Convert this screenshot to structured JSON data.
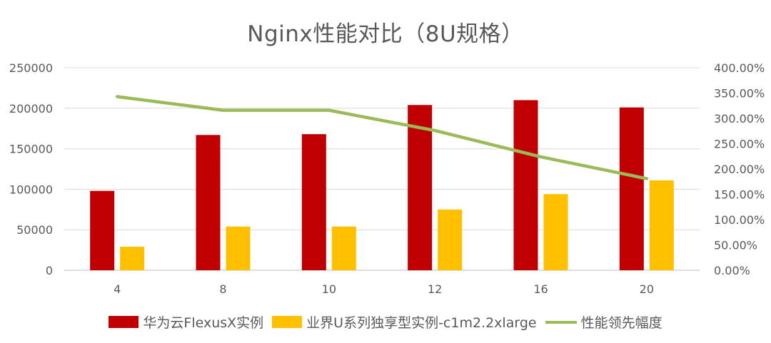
{
  "chart_data": {
    "type": "bar",
    "title": "Nginx性能对比（8U规格）",
    "categories": [
      "4",
      "8",
      "10",
      "12",
      "16",
      "20"
    ],
    "series": [
      {
        "name": "华为云FlexusX实例",
        "type": "bar",
        "axis": "left",
        "color": "#c00000",
        "values": [
          98000,
          167000,
          168000,
          204000,
          210000,
          201000
        ]
      },
      {
        "name": "业界U系列独享型实例-c1m2.2xlarge",
        "type": "bar",
        "axis": "left",
        "color": "#ffc000",
        "values": [
          29000,
          54000,
          54000,
          75000,
          94000,
          111000
        ]
      },
      {
        "name": "性能领先幅度",
        "type": "line",
        "axis": "right",
        "color": "#9bbb59",
        "values": [
          3.43,
          3.16,
          3.16,
          2.76,
          2.24,
          1.81
        ]
      }
    ],
    "left_axis": {
      "ylim": [
        0,
        250000
      ],
      "ticks": [
        "0",
        "50000",
        "100000",
        "150000",
        "200000",
        "250000"
      ]
    },
    "right_axis": {
      "ylim": [
        0,
        4
      ],
      "ticks": [
        "0.00%",
        "50.00%",
        "100.00%",
        "150.00%",
        "200.00%",
        "250.00%",
        "300.00%",
        "350.00%",
        "400.00%"
      ]
    },
    "grid": true,
    "legend_position": "bottom"
  }
}
